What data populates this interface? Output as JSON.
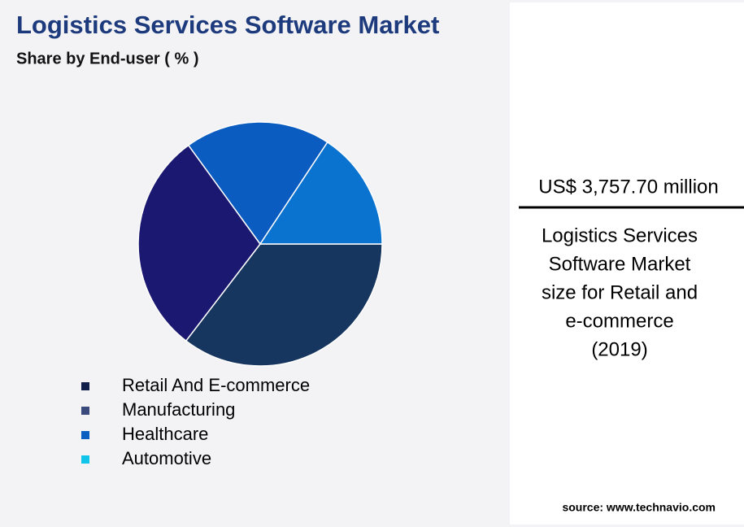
{
  "chart_data": {
    "type": "pie",
    "title": "Logistics Services Software Market",
    "subtitle": "Share by End-user ( % )",
    "categories": [
      "Retail And E-commerce",
      "Manufacturing",
      "Healthcare",
      "Automotive"
    ],
    "values": [
      35.4,
      29.6,
      19.3,
      15.7
    ],
    "colors": [
      "#16355f",
      "#1a1870",
      "#0a5cc0",
      "#0a72cf"
    ],
    "legend_colors": [
      "#0f1f4a",
      "#3b4a7c",
      "#0b5fc0",
      "#10c4ea"
    ]
  },
  "highlight": {
    "amount": "US$ 3,757.70 million",
    "description_lines": [
      "Logistics Services",
      "Software Market",
      "size for Retail and",
      "e-commerce",
      "(2019)"
    ]
  },
  "source": "source: www.technavio.com"
}
